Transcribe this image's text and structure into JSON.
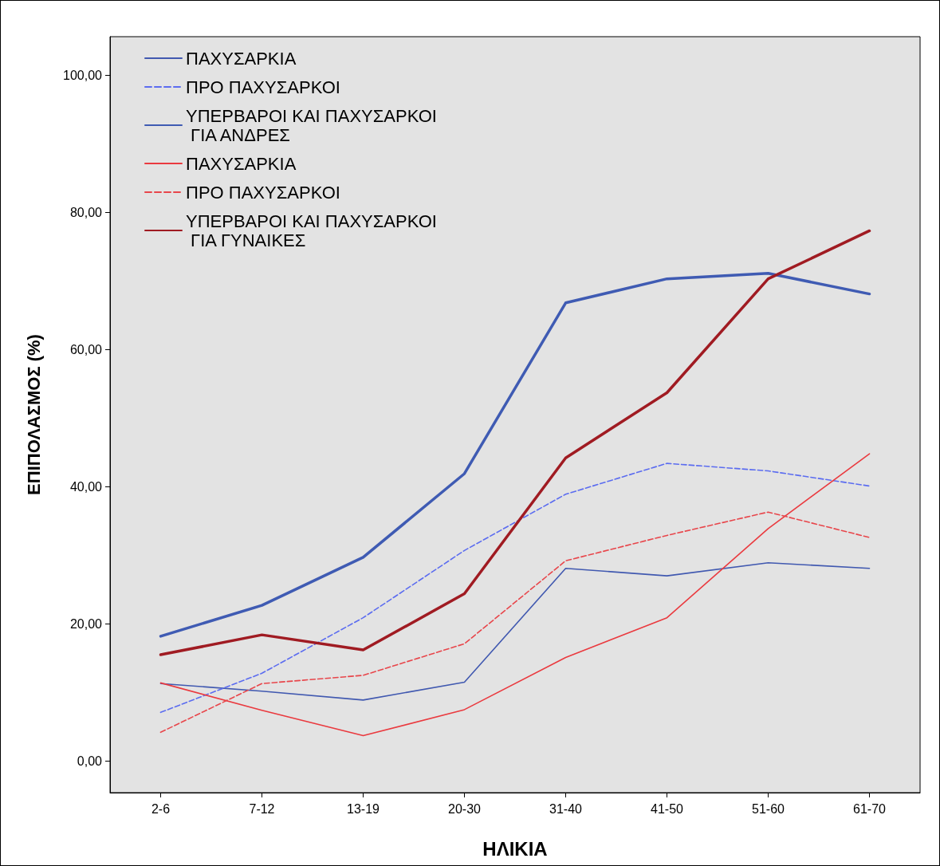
{
  "chart_data": {
    "type": "line",
    "xlabel": "ΗΛΙΚΙΑ",
    "ylabel": "ΕΠΙΠΟΛΑΣΜΟΣ (%)",
    "categories": [
      "2-6",
      "7-12",
      "13-19",
      "20-30",
      "31-40",
      "41-50",
      "51-60",
      "61-70"
    ],
    "series": [
      {
        "name": "ΠΑΧΥΣΑΡΚΙΑ",
        "color": "#4159b0",
        "line_style": "solid",
        "values": [
          11.3,
          10.2,
          8.9,
          11.5,
          28.1,
          27.0,
          28.9,
          28.1
        ]
      },
      {
        "name": "ΠΡΟ ΠΑΧΥΣΑΡΚΟΙ",
        "color": "#5b6cf0",
        "line_style": "dashed",
        "values": [
          7.1,
          12.8,
          20.9,
          30.7,
          38.9,
          43.4,
          42.3,
          40.1
        ]
      },
      {
        "name": "ΥΠΕΡΒΑΡΟΙ ΚΑΙ ΠΑΧΥΣΑΡΚΟΙ ΓΙΑ ΑΝΔΡΕΣ",
        "color": "#3f5bb3",
        "line_style": "solid",
        "values": [
          18.2,
          22.7,
          29.7,
          41.9,
          66.8,
          70.3,
          71.1,
          68.1
        ]
      },
      {
        "name": "ΠΑΧΥΣΑΡΚΙΑ",
        "color": "#ea3a3f",
        "line_style": "solid",
        "values": [
          11.4,
          7.4,
          3.7,
          7.5,
          15.1,
          20.9,
          33.9,
          44.8
        ]
      },
      {
        "name": "ΠΡΟ ΠΑΧΥΣΑΡΚΟΙ",
        "color": "#e8464b",
        "line_style": "dashed",
        "values": [
          4.2,
          11.3,
          12.5,
          17.1,
          29.2,
          32.9,
          36.3,
          32.6
        ]
      },
      {
        "name": "ΥΠΕΡΒΑΡΟΙ ΚΑΙ ΠΑΧΥΣΑΡΚΟΙ ΓΙΑ ΓΥΝΑΙΚΕΣ",
        "color": "#a01b22",
        "line_style": "solid",
        "values": [
          15.5,
          18.4,
          16.2,
          24.4,
          44.2,
          53.7,
          70.3,
          77.3
        ]
      }
    ],
    "ylim": [
      -4.6,
      105.6
    ],
    "yticks": [
      {
        "value": 0,
        "label": "0,00"
      },
      {
        "value": 20,
        "label": "20,00"
      },
      {
        "value": 40,
        "label": "40,00"
      },
      {
        "value": 60,
        "label": "60,00"
      },
      {
        "value": 80,
        "label": "80,00"
      },
      {
        "value": 100,
        "label": "100,00"
      }
    ],
    "grid": false,
    "legend": "top left",
    "marker": "none"
  }
}
